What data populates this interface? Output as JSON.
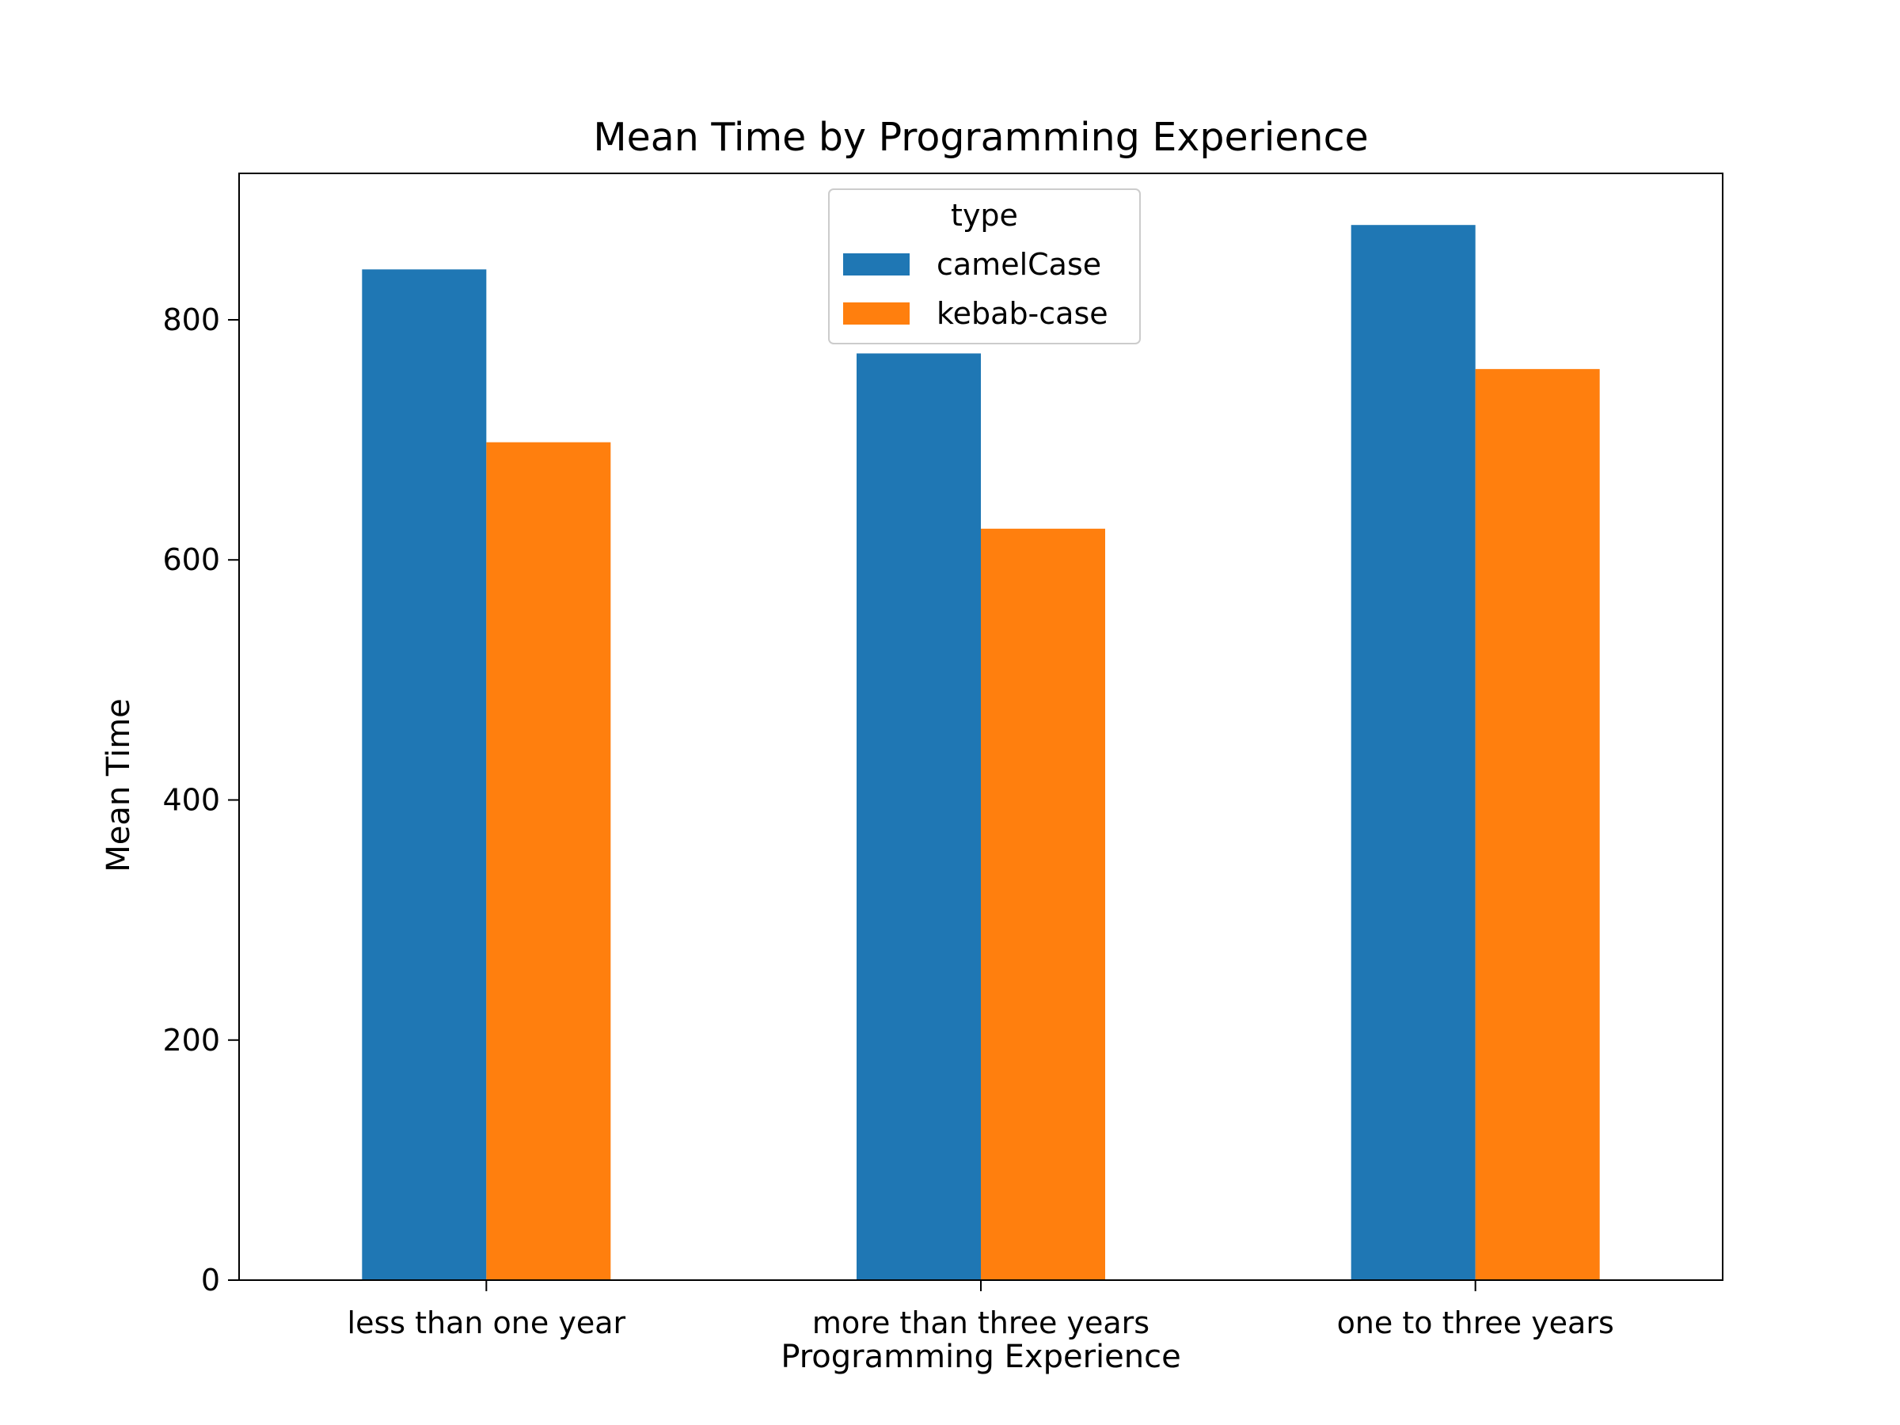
{
  "chart_data": {
    "type": "bar",
    "title": "Mean Time by Programming Experience",
    "xlabel": "Programming Experience",
    "ylabel": "Mean Time",
    "categories": [
      "less than one year",
      "more than three years",
      "one to three years"
    ],
    "series": [
      {
        "name": "camelCase",
        "values": [
          842,
          772,
          879
        ],
        "color": "#1f77b4"
      },
      {
        "name": "kebab-case",
        "values": [
          698,
          626,
          759
        ],
        "color": "#ff7f0e"
      }
    ],
    "ylim": [
      0,
      922
    ],
    "yticks": [
      0,
      200,
      400,
      600,
      800
    ],
    "y_tick_labels": [
      "0",
      "200",
      "400",
      "600",
      "800"
    ],
    "grid": false,
    "legend": {
      "title": "type",
      "placement": "top-center"
    }
  }
}
